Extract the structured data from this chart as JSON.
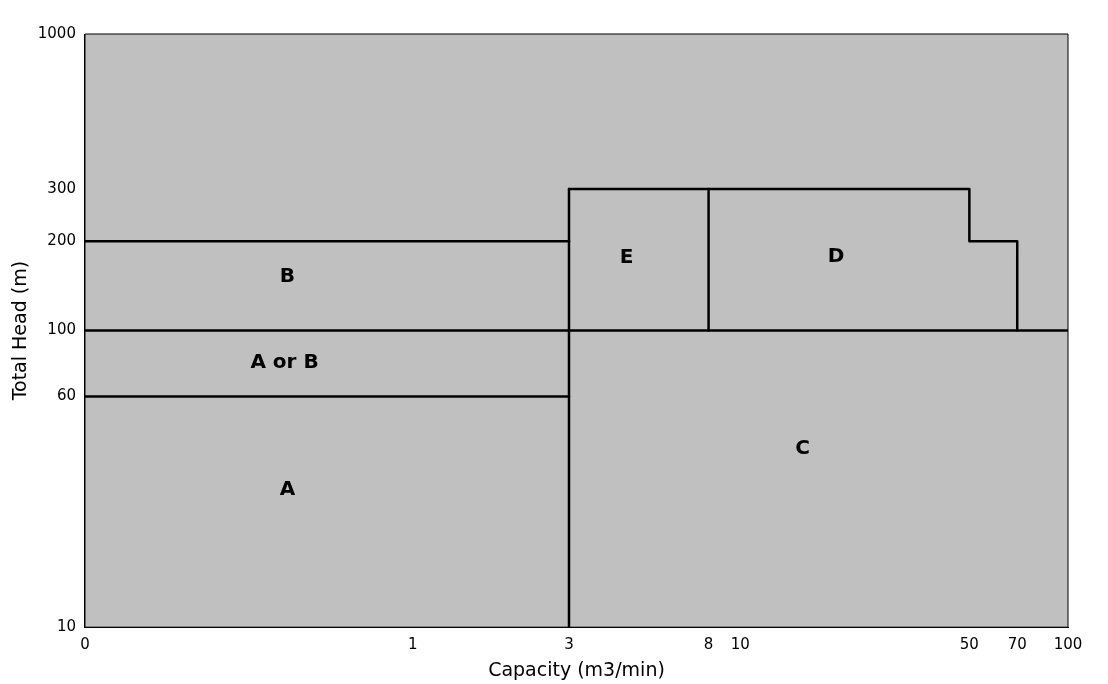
{
  "chart_data": {
    "type": "line",
    "xlabel": "Capacity (m3/min)",
    "ylabel": "Total Head (m)",
    "log": "xy",
    "grid": false,
    "legend": false,
    "marker": "none",
    "line_style": "solid",
    "xlim": [
      0.1,
      100
    ],
    "xticks": [
      {
        "value": 0.1,
        "label": "0"
      },
      1,
      3,
      8,
      10,
      50,
      70,
      100
    ],
    "ylim": [
      10,
      1000
    ],
    "yticks": [
      10,
      60,
      100,
      200,
      300,
      1000
    ],
    "series": [
      {
        "color": "#000000",
        "x": [
          0.1,
          3
        ],
        "values": [
          200,
          200
        ]
      },
      {
        "color": "#000000",
        "x": [
          0.1,
          100
        ],
        "values": [
          100,
          100
        ]
      },
      {
        "color": "#000000",
        "x": [
          0.1,
          3
        ],
        "values": [
          60,
          60
        ]
      },
      {
        "color": "#000000",
        "x": [
          3,
          3
        ],
        "values": [
          10,
          300
        ]
      },
      {
        "color": "#000000",
        "x": [
          3,
          50,
          50,
          70,
          70
        ],
        "values": [
          300,
          300,
          200,
          200,
          100
        ]
      },
      {
        "color": "#000000",
        "x": [
          8,
          8
        ],
        "values": [
          100,
          300
        ]
      }
    ],
    "annotations": [
      "B",
      "A or B",
      "A",
      "E",
      "D",
      "C"
    ]
  }
}
